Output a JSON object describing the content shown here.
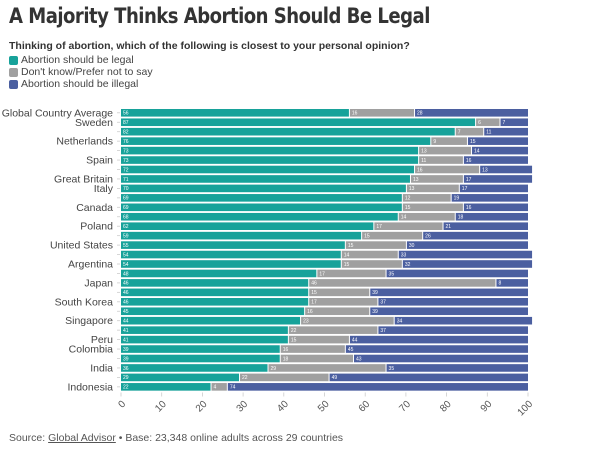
{
  "chart_data": {
    "type": "bar",
    "orientation": "horizontal",
    "stacked": true,
    "title": "A Majority Thinks Abortion Should Be Legal",
    "subtitle": "Thinking of abortion, which of the following is closest to your personal opinion?",
    "xlabel": "",
    "ylabel": "",
    "xlim": [
      0,
      100
    ],
    "x_ticks": [
      "0",
      "10",
      "20",
      "30",
      "40",
      "50",
      "60",
      "70",
      "80",
      "90",
      "100"
    ],
    "grid": false,
    "legend_position": "top-left",
    "categories": [
      "Global Country Average",
      "Sweden",
      "",
      "Netherlands",
      "",
      "Spain",
      "",
      "Great Britain",
      "Italy",
      "",
      "Canada",
      "",
      "Poland",
      "",
      "United States",
      "",
      "Argentina",
      "",
      "Japan",
      "",
      "South Korea",
      "",
      "Singapore",
      "",
      "Peru",
      "Colombia",
      "",
      "India",
      "",
      "Indonesia"
    ],
    "series": [
      {
        "name": "Abortion should be legal",
        "color": "#17a29a",
        "values": [
          56,
          87,
          82,
          76,
          73,
          73,
          72,
          71,
          70,
          69,
          69,
          68,
          62,
          59,
          55,
          54,
          54,
          48,
          46,
          46,
          46,
          45,
          44,
          41,
          41,
          39,
          39,
          36,
          29,
          22
        ]
      },
      {
        "name": "Don't know/Prefer not to say",
        "color": "#a0a0a0",
        "values": [
          16,
          6,
          7,
          9,
          13,
          11,
          16,
          13,
          13,
          12,
          15,
          14,
          17,
          15,
          15,
          14,
          15,
          17,
          46,
          15,
          17,
          16,
          23,
          22,
          15,
          16,
          18,
          29,
          22,
          4
        ]
      },
      {
        "name": "Abortion should be illegal",
        "color": "#4b5fa0",
        "values": [
          28,
          7,
          11,
          15,
          14,
          16,
          13,
          17,
          17,
          19,
          16,
          18,
          21,
          26,
          30,
          33,
          32,
          35,
          8,
          39,
          37,
          39,
          34,
          37,
          44,
          45,
          43,
          35,
          49,
          74
        ]
      }
    ]
  },
  "source": {
    "prefix": "Source: ",
    "link_text": "Global Advisor",
    "suffix": " • Base: 23,348 online adults across 29 countries"
  }
}
